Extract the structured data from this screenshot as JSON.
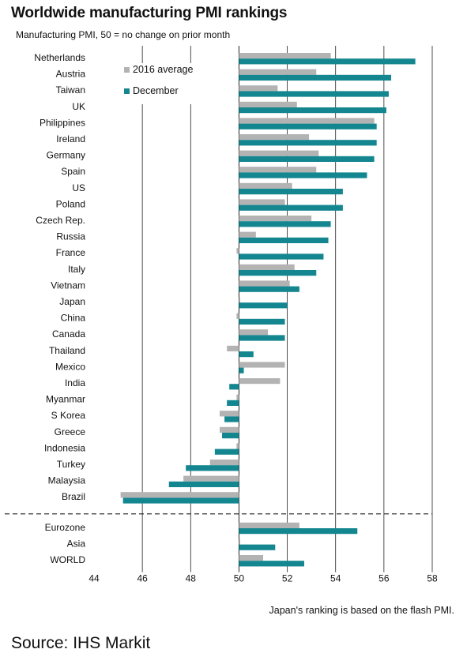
{
  "chart_data": {
    "type": "bar",
    "orientation": "horizontal",
    "title": "Worldwide manufacturing PMI rankings",
    "subtitle": "Manufacturing PMI, 50 = no change on prior month",
    "xlim": [
      44,
      58
    ],
    "xticks": [
      "44",
      "46",
      "48",
      "50",
      "52",
      "54",
      "56",
      "58"
    ],
    "baseline": 50,
    "grid": "vertical",
    "legend_position": "top-left",
    "categories": [
      "Netherlands",
      "Austria",
      "Taiwan",
      "UK",
      "Philippines",
      "Ireland",
      "Germany",
      "Spain",
      "US",
      "Poland",
      "Czech Rep.",
      "Russia",
      "France",
      "Italy",
      "Vietnam",
      "Japan",
      "China",
      "Canada",
      "Thailand",
      "Mexico",
      "India",
      "Myanmar",
      "S Korea",
      "Greece",
      "Indonesia",
      "Turkey",
      "Malaysia",
      "Brazil",
      "Eurozone",
      "Asia",
      "WORLD"
    ],
    "separator_after": "Brazil",
    "series": [
      {
        "name": "2016 average",
        "color": "#b3b3b3",
        "values": [
          53.8,
          53.2,
          51.6,
          52.4,
          55.6,
          52.9,
          53.3,
          53.2,
          52.2,
          51.9,
          53.0,
          50.7,
          49.9,
          52.3,
          52.1,
          50.0,
          49.9,
          51.2,
          49.5,
          51.9,
          51.7,
          49.9,
          49.2,
          49.2,
          49.9,
          48.8,
          47.7,
          45.1,
          52.5,
          50.0,
          51.0
        ]
      },
      {
        "name": "December",
        "color": "#138690",
        "values": [
          57.3,
          56.3,
          56.2,
          56.1,
          55.7,
          55.7,
          55.6,
          55.3,
          54.3,
          54.3,
          53.8,
          53.7,
          53.5,
          53.2,
          52.5,
          52.0,
          51.9,
          51.9,
          50.6,
          50.2,
          49.6,
          49.5,
          49.4,
          49.3,
          49.0,
          47.8,
          47.1,
          45.2,
          54.9,
          51.5,
          52.7
        ]
      }
    ]
  },
  "footnote": "Japan's ranking is based on the flash PMI.",
  "source": "Source: IHS Markit"
}
